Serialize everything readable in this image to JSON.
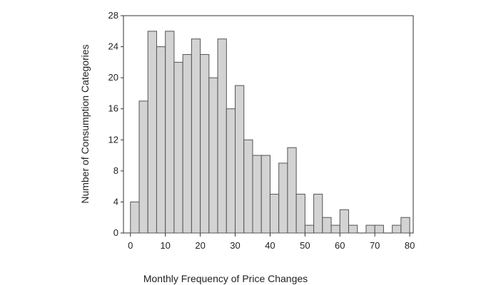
{
  "chart_data": {
    "type": "bar",
    "title": "",
    "xlabel": "Monthly Frequency of Price Changes",
    "ylabel": "Number of Consumption Categories",
    "bin_width": 2.5,
    "bin_starts": [
      0,
      2.5,
      5,
      7.5,
      10,
      12.5,
      15,
      17.5,
      20,
      22.5,
      25,
      27.5,
      30,
      32.5,
      35,
      37.5,
      40,
      42.5,
      45,
      47.5,
      50,
      52.5,
      55,
      57.5,
      60,
      62.5,
      65,
      67.5,
      70,
      72.5,
      75,
      77.5
    ],
    "values": [
      4,
      17,
      26,
      24,
      26,
      22,
      23,
      25,
      23,
      20,
      25,
      16,
      19,
      12,
      10,
      10,
      5,
      9,
      11,
      5,
      1,
      5,
      2,
      1,
      3,
      1,
      0,
      1,
      1,
      0,
      1,
      2
    ],
    "xlim": [
      -2,
      81
    ],
    "ylim": [
      0,
      28
    ],
    "x_ticks": [
      "0",
      "10",
      "20",
      "30",
      "40",
      "50",
      "60",
      "70",
      "80"
    ],
    "y_ticks": [
      "0",
      "4",
      "8",
      "12",
      "16",
      "20",
      "24",
      "28"
    ],
    "grid": false
  }
}
